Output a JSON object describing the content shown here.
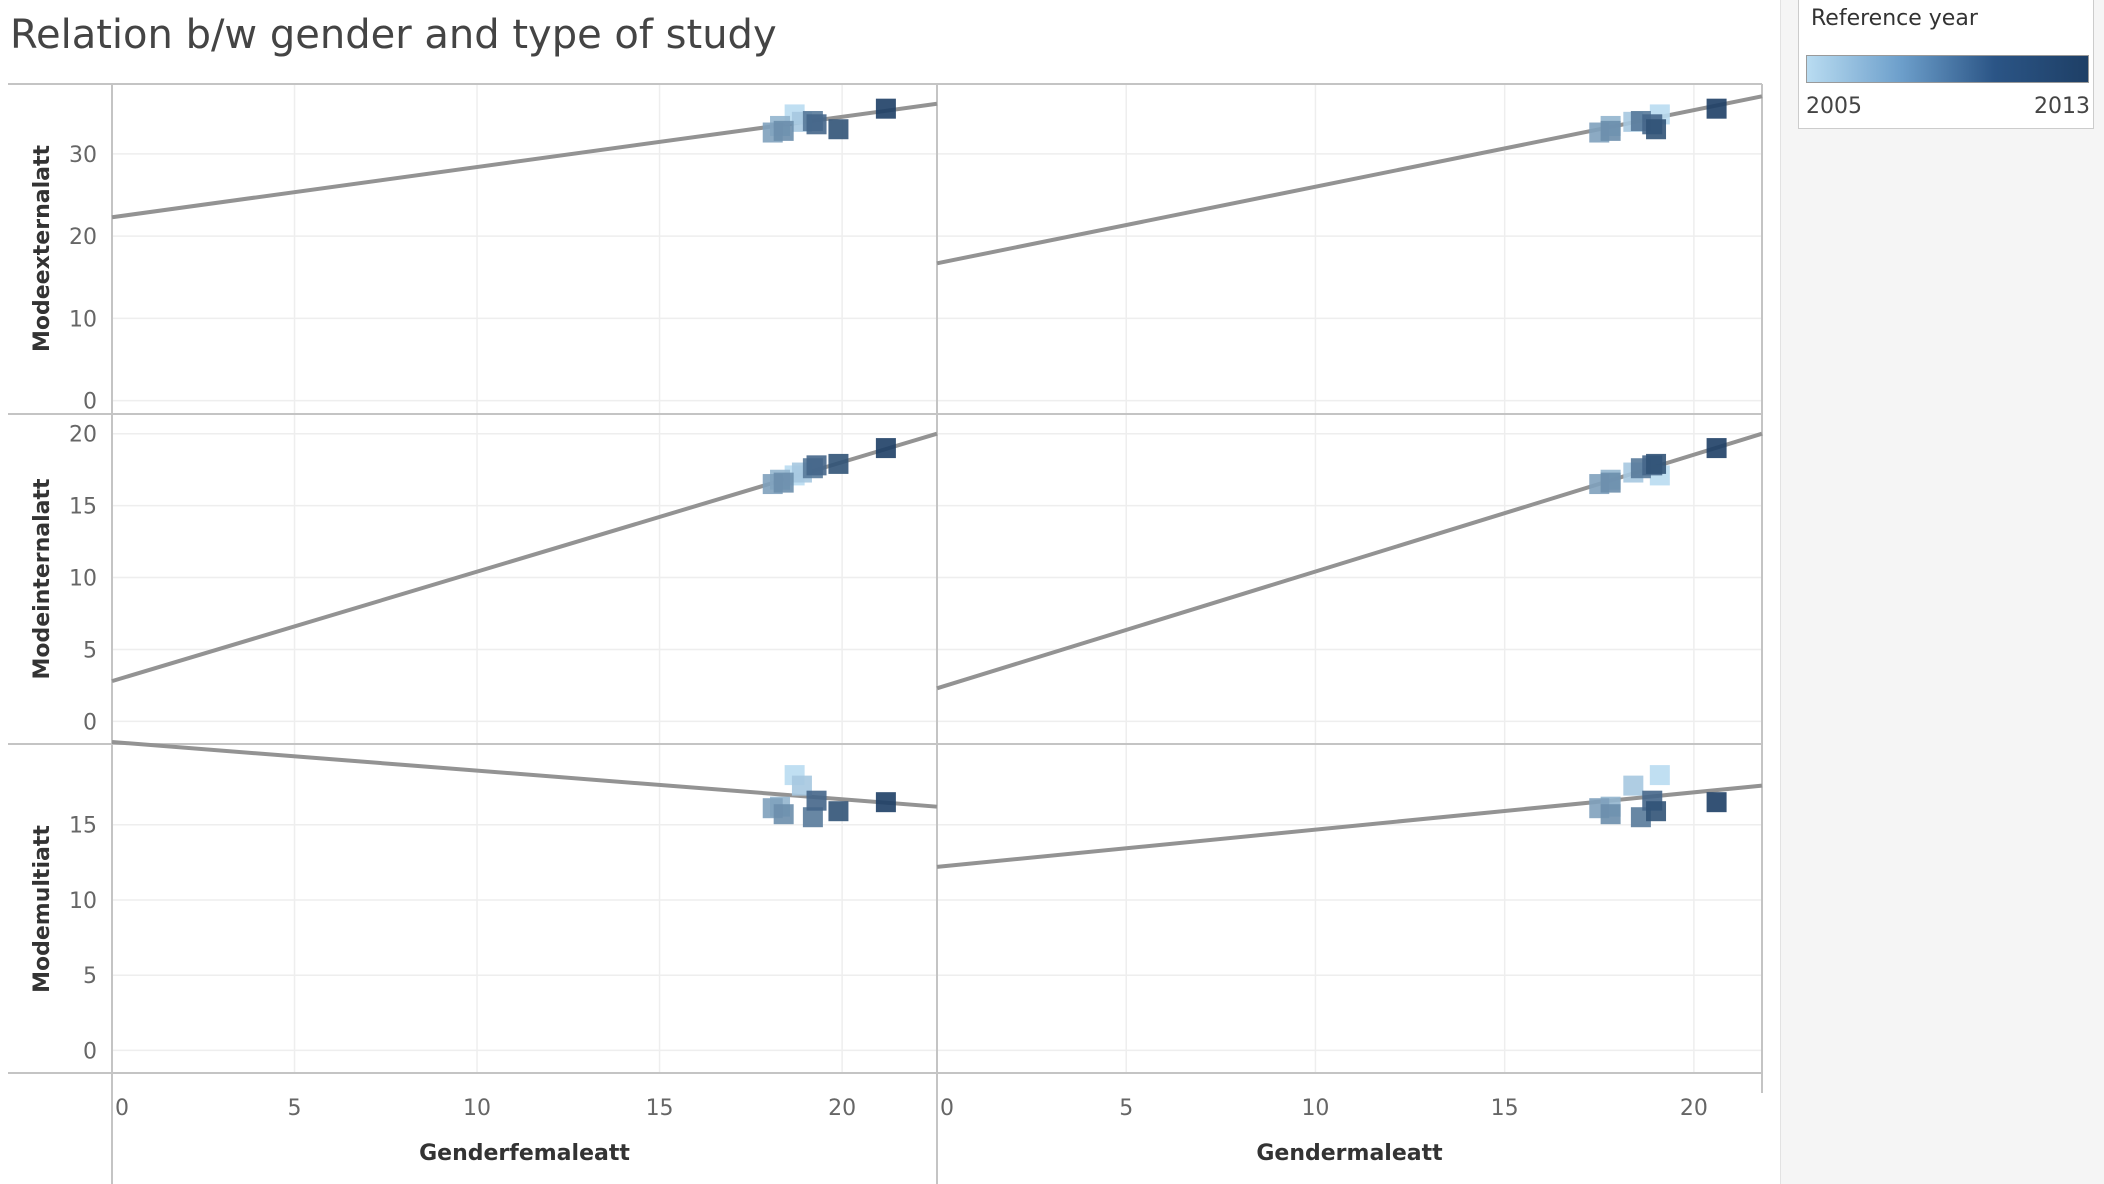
{
  "title": "Relation b/w gender and type of study",
  "legend": {
    "title": "Reference year",
    "min_label": "2005",
    "max_label": "2013",
    "min_year": 2005,
    "max_year": 2013,
    "color_low": "#b9dcf1",
    "color_high": "#1e3f66"
  },
  "colors": {
    "trend_line": "#939393",
    "grid": "#eeeeee",
    "axis": "#c4c4c4",
    "tick_text": "#666666",
    "label_text": "#333333"
  },
  "chart_data": {
    "type": "scatter",
    "title": "Relation b/w gender and type of study",
    "columns": [
      {
        "field": "Genderfemaleatt",
        "label": "Genderfemaleatt",
        "xlim": [
          0,
          22.6
        ],
        "ticks": [
          0,
          5,
          10,
          15,
          20
        ]
      },
      {
        "field": "Gendermaleatt",
        "label": "Gendermaleatt",
        "xlim": [
          0,
          21.8
        ],
        "ticks": [
          0,
          5,
          10,
          15,
          20
        ]
      }
    ],
    "rows": [
      {
        "field": "Modeexternalatt",
        "label": "Modeexternalatt",
        "ylim": [
          -1.5,
          38.5
        ],
        "ticks": [
          0,
          10,
          20,
          30
        ]
      },
      {
        "field": "Modeinternalatt",
        "label": "Modeinternalatt",
        "ylim": [
          -1.5,
          21.3
        ],
        "ticks": [
          0,
          5,
          10,
          15,
          20
        ]
      },
      {
        "field": "Modemultiatt",
        "label": "Modemultiatt",
        "ylim": [
          -1.5,
          20.3
        ],
        "ticks": [
          0,
          5,
          10,
          15
        ]
      }
    ],
    "trend_lines": [
      {
        "row": 0,
        "col": 0,
        "x": [
          0,
          22.6
        ],
        "y": [
          22.3,
          36.1
        ]
      },
      {
        "row": 0,
        "col": 1,
        "x": [
          0,
          21.8
        ],
        "y": [
          16.7,
          37.0
        ]
      },
      {
        "row": 1,
        "col": 0,
        "x": [
          0,
          22.6
        ],
        "y": [
          2.8,
          20.0
        ]
      },
      {
        "row": 1,
        "col": 1,
        "x": [
          0,
          21.8
        ],
        "y": [
          2.3,
          20.0
        ]
      },
      {
        "row": 2,
        "col": 0,
        "x": [
          0,
          22.6
        ],
        "y": [
          20.5,
          16.2
        ]
      },
      {
        "row": 2,
        "col": 1,
        "x": [
          0,
          21.8
        ],
        "y": [
          12.2,
          17.6
        ]
      }
    ],
    "points": [
      {
        "year": 2005,
        "female": 18.7,
        "male": 19.1,
        "external": 34.8,
        "internal": 17.1,
        "multi": 18.3
      },
      {
        "year": 2006,
        "female": 18.9,
        "male": 18.4,
        "external": 33.9,
        "internal": 17.3,
        "multi": 17.6
      },
      {
        "year": 2007,
        "female": 18.3,
        "male": 17.8,
        "external": 33.4,
        "internal": 16.8,
        "multi": 16.2
      },
      {
        "year": 2008,
        "female": 18.1,
        "male": 17.5,
        "external": 32.6,
        "internal": 16.5,
        "multi": 16.1
      },
      {
        "year": 2009,
        "female": 18.4,
        "male": 17.8,
        "external": 32.8,
        "internal": 16.6,
        "multi": 15.7
      },
      {
        "year": 2010,
        "female": 19.2,
        "male": 18.6,
        "external": 34.0,
        "internal": 17.6,
        "multi": 15.5
      },
      {
        "year": 2011,
        "female": 19.3,
        "male": 18.9,
        "external": 33.6,
        "internal": 17.8,
        "multi": 16.6
      },
      {
        "year": 2012,
        "female": 19.9,
        "male": 19.0,
        "external": 33.0,
        "internal": 17.9,
        "multi": 15.9
      },
      {
        "year": 2013,
        "female": 21.2,
        "male": 20.6,
        "external": 35.5,
        "internal": 19.0,
        "multi": 16.5
      }
    ]
  }
}
